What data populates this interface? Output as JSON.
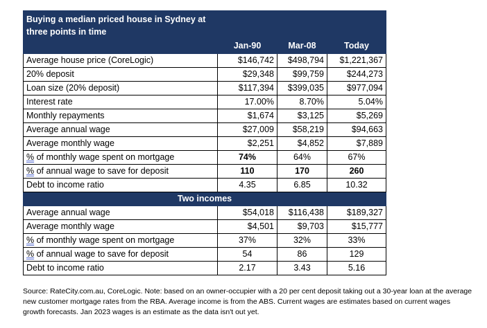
{
  "title": "Buying a median priced house in Sydney at three points in time",
  "columns": [
    "Jan-90",
    "Mar-08",
    "Today"
  ],
  "rows": [
    {
      "label": "Average house price (CoreLogic)",
      "values": [
        "$146,742",
        "$498,794",
        "$1,221,367"
      ]
    },
    {
      "label": "20% deposit",
      "values": [
        "$29,348",
        "$99,759",
        "$244,273"
      ]
    },
    {
      "label": "Loan size (20% deposit)",
      "values": [
        "$117,394",
        "$399,035",
        "$977,094"
      ]
    },
    {
      "label": "Interest rate",
      "values": [
        "17.00%",
        "8.70%",
        "5.04%"
      ]
    },
    {
      "label": "Monthly repayments",
      "values": [
        "$1,674",
        "$3,125",
        "$5,269"
      ]
    },
    {
      "label": "Average annual wage",
      "values": [
        "$27,009",
        "$58,219",
        "$94,663"
      ]
    },
    {
      "label": "Average monthly wage",
      "values": [
        "$2,251",
        "$4,852",
        "$7,889"
      ]
    },
    {
      "label_pct": "%",
      "label_rest": " of monthly wage spent on mortgage",
      "values": [
        "74%",
        "64%",
        "67%"
      ]
    },
    {
      "label_pct": "%",
      "label_rest": " of annual wage to save for deposit",
      "values": [
        "110",
        "170",
        "260"
      ]
    },
    {
      "label": "Debt to income ratio",
      "values": [
        "4.35",
        "6.85",
        "10.32"
      ]
    }
  ],
  "section2_title": "Two incomes",
  "rows2": [
    {
      "label": "Average annual wage",
      "values": [
        "$54,018",
        "$116,438",
        "$189,327"
      ]
    },
    {
      "label": "Average monthly wage",
      "values": [
        "$4,501",
        "$9,703",
        "$15,777"
      ]
    },
    {
      "label_pct": "%",
      "label_rest": " of monthly wage spent on mortgage",
      "values": [
        "37%",
        "32%",
        "33%"
      ]
    },
    {
      "label_pct": "%",
      "label_rest": " of annual wage to save for deposit",
      "values": [
        "54",
        "86",
        "129"
      ]
    },
    {
      "label": "Debt to income ratio",
      "values": [
        "2.17",
        "3.43",
        "5.16"
      ]
    }
  ],
  "source": "Source: RateCity.com.au, CoreLogic. Note: based on an owner-occupier with a 20 per cent deposit taking out a 30-year loan at the average new customer mortgage rates from the RBA. Average income is from the ABS. Current wages are estimates based on current wages growth forecasts. Jan 2023 wages is an estimate as the data isn't out yet.",
  "colors": {
    "header_bg": "#1f3864",
    "header_text": "#ffffff"
  }
}
